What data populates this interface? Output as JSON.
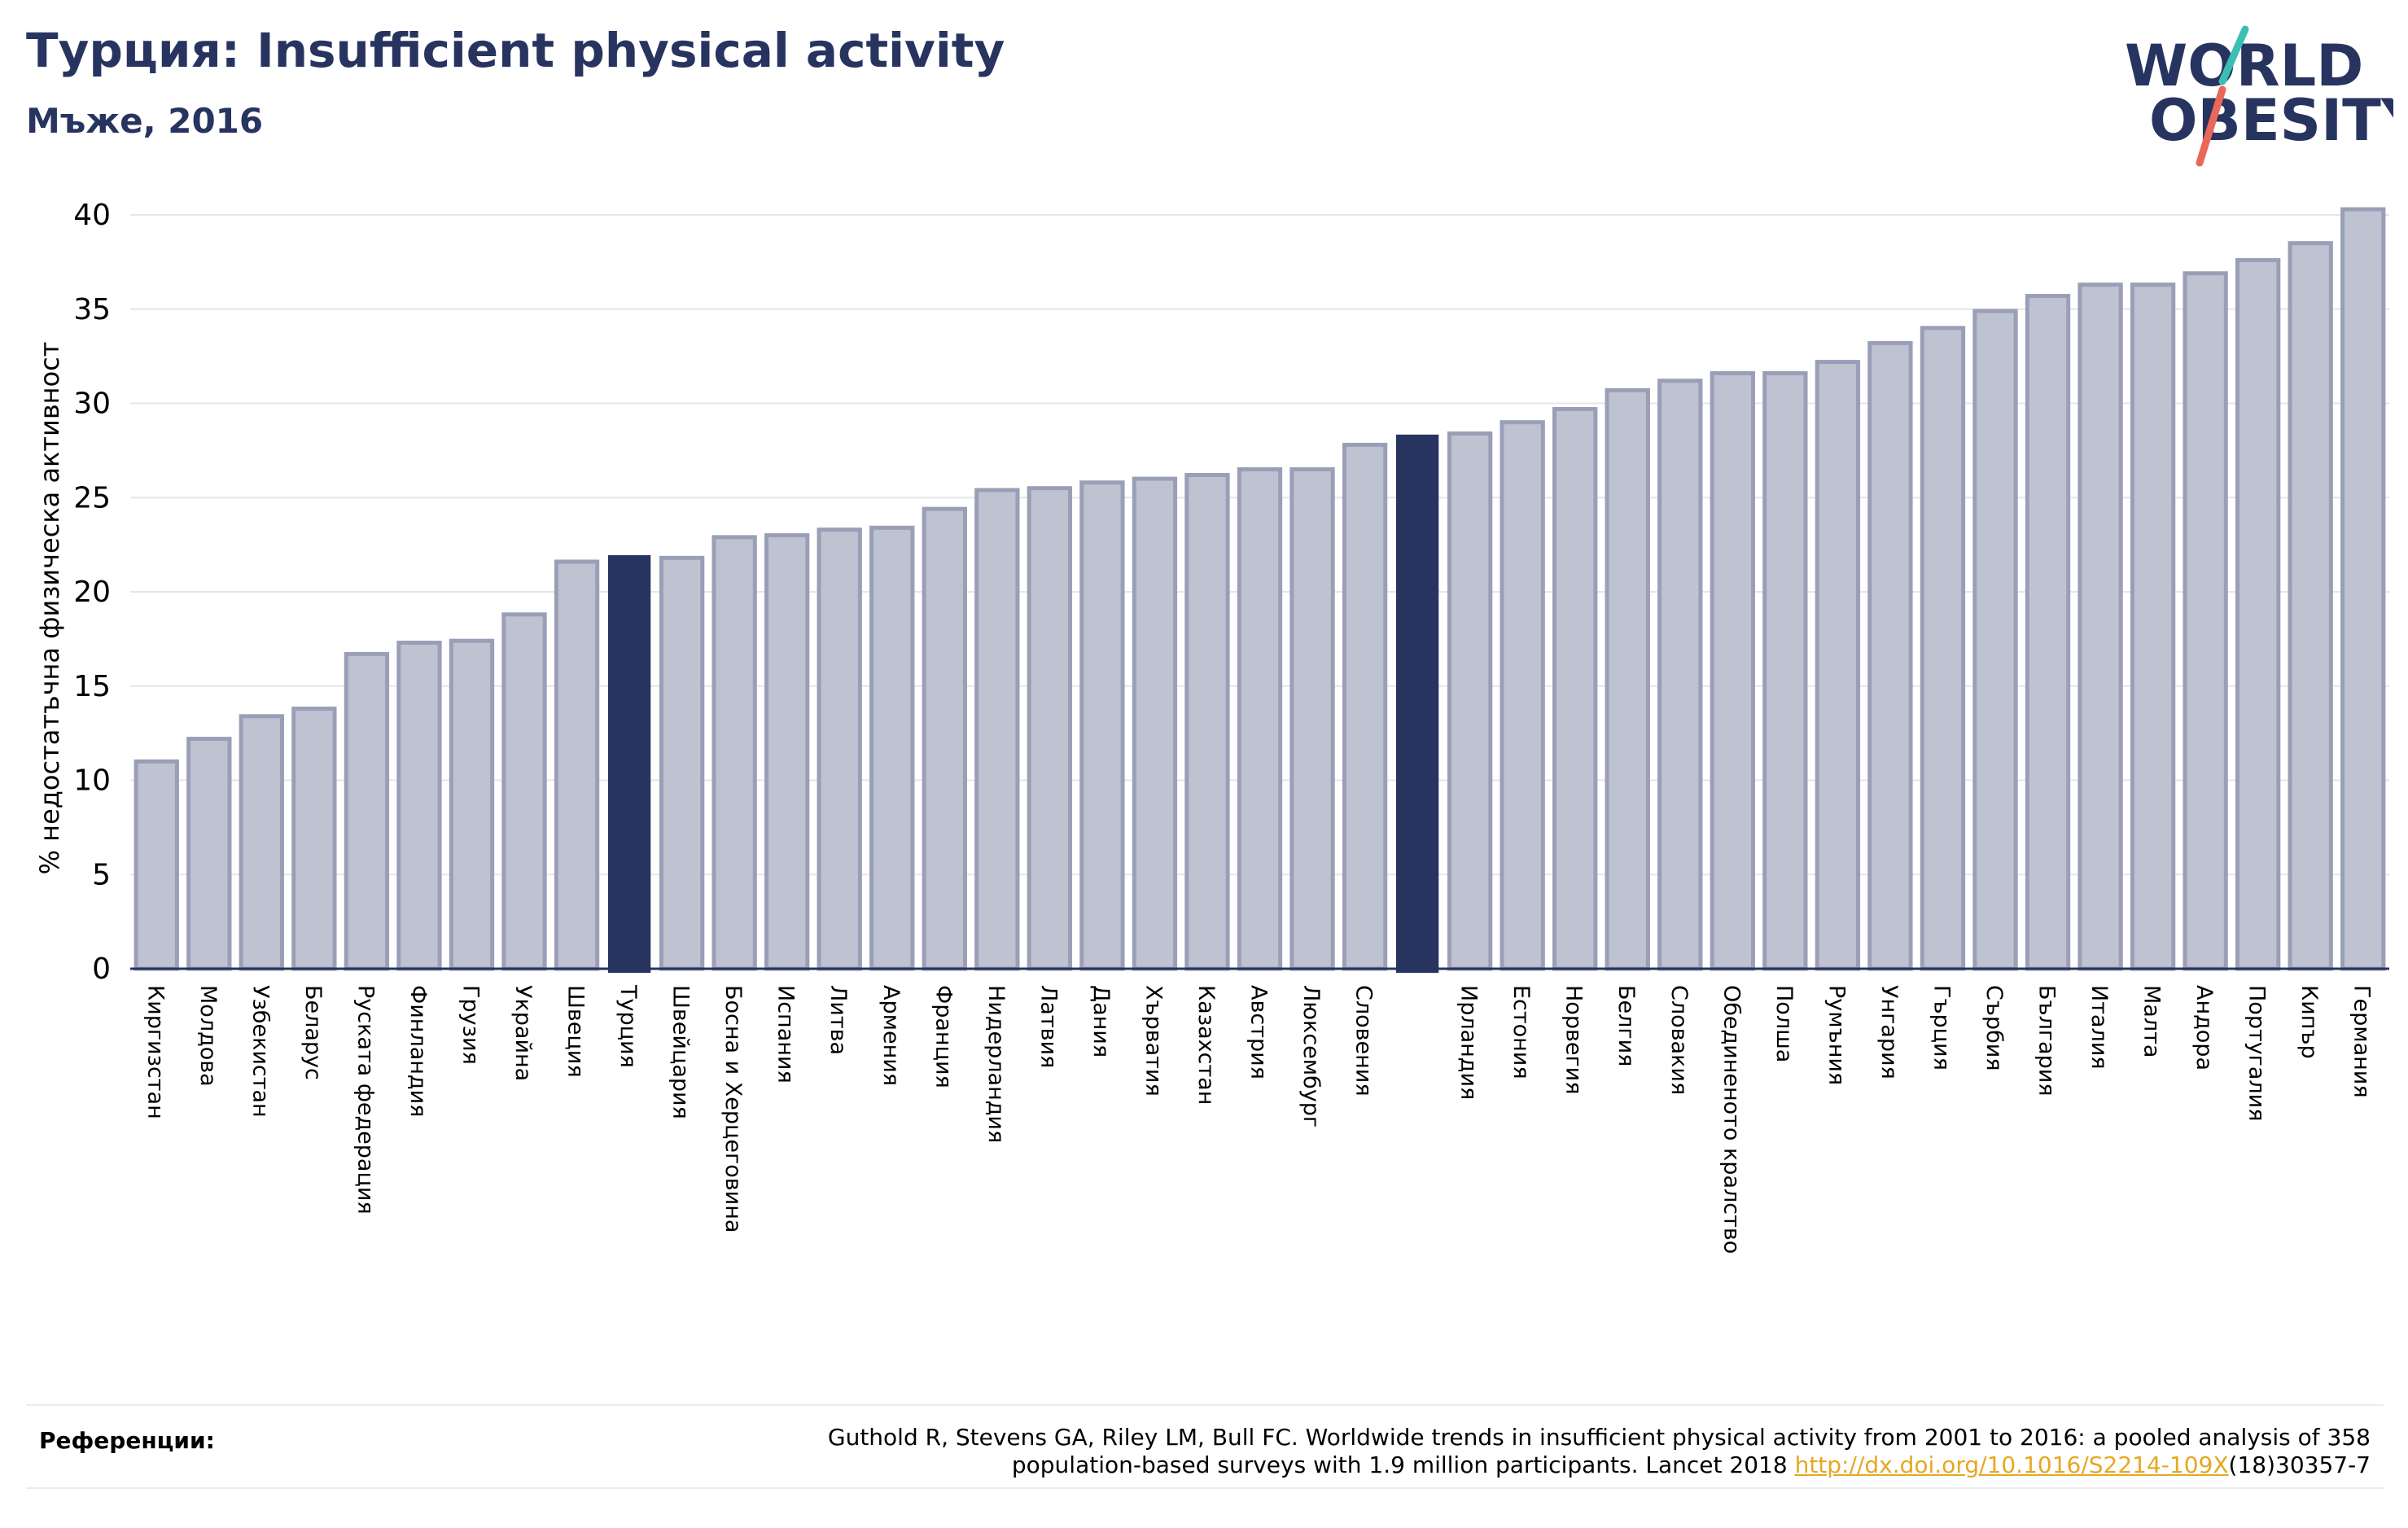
{
  "header": {
    "title": "Турция: Insufficient physical activity",
    "subtitle": "Мъже, 2016"
  },
  "logo": {
    "line1": "WORLD",
    "line2": "OBESITY",
    "icon": "world-obesity-logo"
  },
  "colors": {
    "bar": "#bfc2d0",
    "bar_border": "#9a9fb8",
    "highlight": "#283460",
    "title": "#283460",
    "link": "#e5a823",
    "logo_slash_teal": "#3bbfb3",
    "logo_slash_red": "#e8685a"
  },
  "chart_data": {
    "type": "bar",
    "ylabel": "% недостатъчна физическа активност",
    "ylim": [
      0,
      42
    ],
    "yticks": [
      0,
      5,
      10,
      15,
      20,
      25,
      30,
      35,
      40
    ],
    "grid": true,
    "categories": [
      "Киргизстан",
      "Молдова",
      "Узбекистан",
      "Беларус",
      "Руската федерация",
      "Финландия",
      "Грузия",
      "Украйна",
      "Швеция",
      "Турция",
      "Швейцария",
      "Босна и Херцеговина",
      "Испания",
      "Литва",
      "Армения",
      "Франция",
      "Нидерландия",
      "Латвия",
      "Дания",
      "Хърватия",
      "Казахстан",
      "Австрия",
      "Люксембург",
      "Словения",
      "",
      "Ирландия",
      "Естония",
      "Норвегия",
      "Белгия",
      "Словакия",
      "Обединеното кралство",
      "Полша",
      "Румъния",
      "Унгария",
      "Гърция",
      "Сърбия",
      "България",
      "Италия",
      "Малта",
      "Андора",
      "Португалия",
      "Кипър",
      "Германия"
    ],
    "values": [
      11.0,
      12.2,
      13.4,
      13.8,
      16.7,
      17.3,
      17.4,
      18.8,
      21.6,
      21.9,
      21.8,
      22.9,
      23.0,
      23.3,
      23.4,
      24.4,
      25.4,
      25.5,
      25.8,
      26.0,
      26.2,
      26.5,
      26.5,
      27.8,
      28.3,
      28.4,
      29.0,
      29.7,
      30.7,
      31.2,
      31.6,
      31.6,
      32.2,
      33.2,
      34.0,
      34.9,
      35.7,
      36.3,
      36.3,
      36.9,
      37.6,
      38.5,
      40.3
    ],
    "highlight_indices": [
      9,
      24
    ]
  },
  "references": {
    "label": "Референции:",
    "line1": "Guthold R, Stevens GA, Riley LM, Bull FC. Worldwide trends in insufficient physical activity from 2001 to 2016: a pooled analysis of 358",
    "line2_prefix": "population-based surveys with 1.9 million participants. Lancet 2018 ",
    "link_text": "http://dx.doi.org/10.1016/S2214-109X",
    "line2_suffix": "(18)30357-7"
  }
}
